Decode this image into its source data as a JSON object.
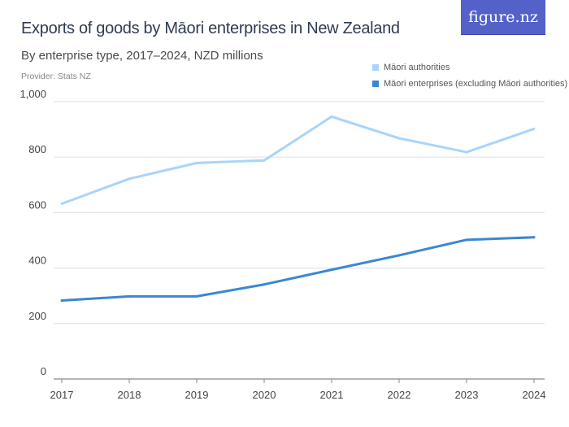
{
  "header": {
    "title": "Exports of goods by Māori enterprises in New Zealand",
    "subtitle": "By enterprise type, 2017–2024, NZD millions",
    "provider": "Provider: Stats NZ",
    "logo": "figure.nz"
  },
  "chart_data": {
    "type": "line",
    "title": "Exports of goods by Māori enterprises in New Zealand",
    "subtitle": "By enterprise type, 2017–2024, NZD millions",
    "x": [
      2017,
      2018,
      2019,
      2020,
      2021,
      2022,
      2023,
      2024
    ],
    "xticks": [
      "2017",
      "2018",
      "2019",
      "2020",
      "2021",
      "2022",
      "2023",
      "2024"
    ],
    "yticks": [
      "0",
      "200",
      "400",
      "600",
      "800",
      "1,000"
    ],
    "ylim": [
      0,
      1000
    ],
    "grid": true,
    "legend_position": "top-right",
    "series": [
      {
        "name": "Māori authorities",
        "color": "#a9d4fb",
        "values": [
          632,
          722,
          779,
          788,
          946,
          868,
          818,
          902
        ]
      },
      {
        "name": "Māori enterprises (excluding Māori authorities)",
        "color": "#3a87d3",
        "values": [
          283,
          298,
          298,
          341,
          394,
          446,
          502,
          511
        ]
      }
    ]
  }
}
